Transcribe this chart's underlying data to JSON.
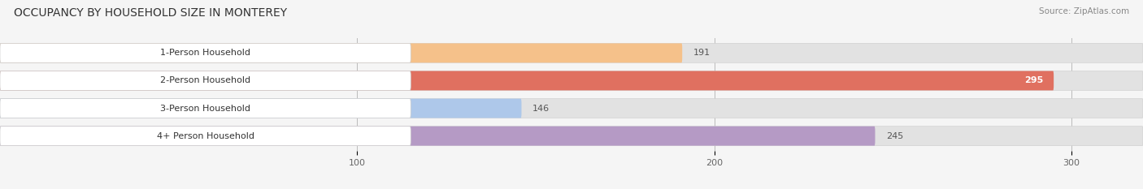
{
  "title": "OCCUPANCY BY HOUSEHOLD SIZE IN MONTEREY",
  "source": "Source: ZipAtlas.com",
  "categories": [
    "1-Person Household",
    "2-Person Household",
    "3-Person Household",
    "4+ Person Household"
  ],
  "values": [
    191,
    295,
    146,
    245
  ],
  "bar_colors": [
    "#f5c18a",
    "#e07060",
    "#aec8ea",
    "#b59ac5"
  ],
  "bar_edge_colors": [
    "#e8a855",
    "#c85a48",
    "#88aad4",
    "#9070a8"
  ],
  "xlim": [
    0,
    320
  ],
  "xticks": [
    100,
    200,
    300
  ],
  "background_color": "#f5f5f5",
  "bar_bg_color": "#e2e2e2",
  "title_fontsize": 10,
  "source_fontsize": 7.5,
  "figsize": [
    14.06,
    2.33
  ],
  "dpi": 100
}
